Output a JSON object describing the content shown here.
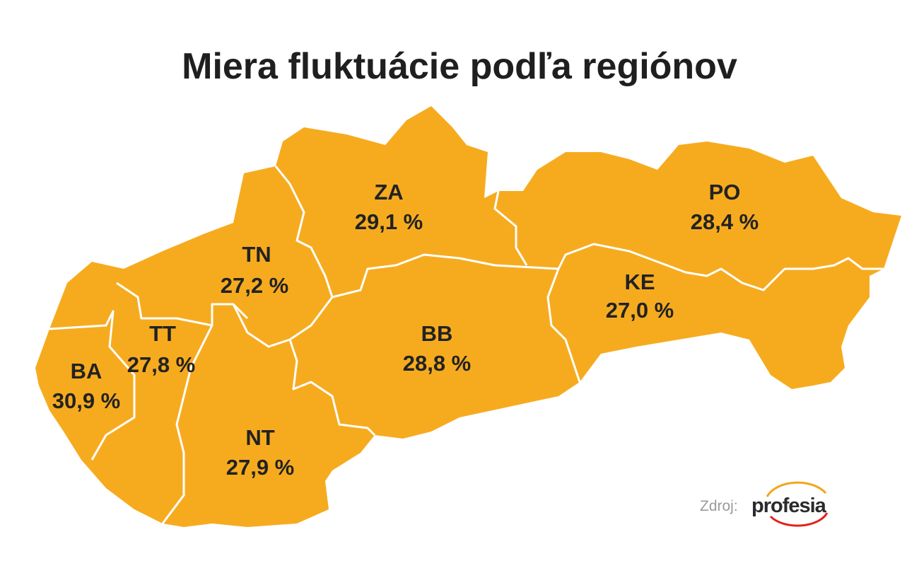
{
  "header": {
    "title": "Miera fluktuácie podľa regiónov"
  },
  "regions": [
    {
      "code": "ZA",
      "value": "29,1 %"
    },
    {
      "code": "PO",
      "value": "28,4 %"
    },
    {
      "code": "TN",
      "value": "27,2 %"
    },
    {
      "code": "KE",
      "value": "27,0 %"
    },
    {
      "code": "BB",
      "value": "28,8 %"
    },
    {
      "code": "TT",
      "value": "27,8 %"
    },
    {
      "code": "BA",
      "value": "30,9 %"
    },
    {
      "code": "NT",
      "value": "27,9 %"
    }
  ],
  "source": {
    "label": "Zdroj:",
    "brand": "profesia"
  }
}
